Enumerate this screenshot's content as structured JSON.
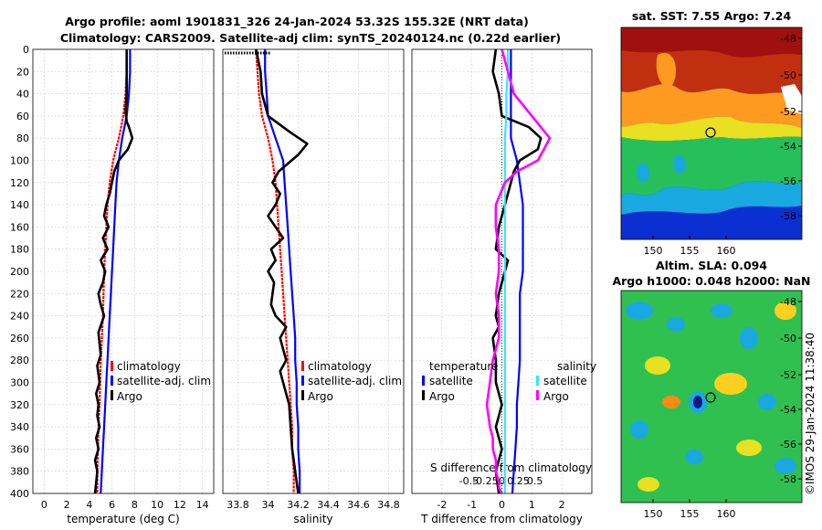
{
  "title_line1": "Argo profile: aoml 1901831_326 24-Jan-2024 53.32S 155.32E (NRT data)",
  "title_line2": "Climatology: CARS2009. Satellite-adj clim: synTS_20240124.nc (0.22d earlier)",
  "copyright": "©IMOS 29-Jan-2024 11:38:40",
  "colors": {
    "climatology": "#ff0000",
    "satellite": "#0000ff",
    "argo": "#000000",
    "sat_salinity": "#33e6ff",
    "argo_salinity": "#ff00ff"
  },
  "chart_data": [
    {
      "type": "line",
      "name": "temperature-profile",
      "xlabel": "temperature (deg C)",
      "xlim": [
        -1,
        15
      ],
      "xticks": [
        "0",
        "2",
        "4",
        "6",
        "8",
        "10",
        "12",
        "14"
      ],
      "ylim": [
        0,
        400
      ],
      "yticks": [
        "0",
        "20",
        "40",
        "60",
        "80",
        "100",
        "120",
        "140",
        "160",
        "180",
        "200",
        "220",
        "240",
        "260",
        "280",
        "300",
        "320",
        "340",
        "360",
        "380",
        "400"
      ],
      "series": [
        {
          "name": "climatology",
          "color": "#ff0000",
          "x": [
            7.3,
            7.3,
            7.2,
            7.0,
            6.6,
            6.1,
            5.8,
            5.6,
            5.5,
            5.4,
            5.3,
            5.25,
            5.2,
            5.1,
            5.0,
            4.95,
            4.9,
            4.8,
            4.75,
            4.7,
            4.7
          ],
          "y": [
            0,
            20,
            40,
            60,
            80,
            100,
            120,
            140,
            160,
            180,
            200,
            220,
            240,
            260,
            280,
            300,
            320,
            340,
            360,
            380,
            400
          ]
        },
        {
          "name": "satellite-adj. clim",
          "color": "#0000ff",
          "x": [
            7.6,
            7.6,
            7.5,
            7.3,
            6.9,
            6.6,
            6.4,
            6.3,
            6.2,
            6.1,
            6.0,
            5.9,
            5.8,
            5.7,
            5.6,
            5.5,
            5.4,
            5.3,
            5.2,
            5.1,
            5.0
          ],
          "y": [
            0,
            20,
            40,
            60,
            80,
            100,
            120,
            140,
            160,
            180,
            200,
            220,
            240,
            260,
            280,
            300,
            320,
            340,
            360,
            380,
            400
          ]
        },
        {
          "name": "Argo",
          "color": "#000000",
          "x": [
            7.3,
            7.3,
            7.3,
            7.2,
            7.3,
            7.5,
            7.8,
            7.4,
            6.6,
            6.2,
            6.0,
            5.8,
            5.5,
            5.3,
            5.7,
            5.2,
            5.6,
            5.0,
            5.4,
            5.2,
            4.8,
            5.0,
            5.3,
            4.8,
            4.9,
            5.0,
            4.7,
            4.9,
            4.6,
            4.8,
            4.7,
            4.9,
            4.6,
            4.8,
            4.5,
            4.7,
            4.6,
            4.5
          ],
          "y": [
            0,
            20,
            40,
            55,
            65,
            70,
            80,
            90,
            100,
            110,
            120,
            130,
            140,
            150,
            160,
            170,
            180,
            190,
            200,
            210,
            220,
            230,
            240,
            255,
            265,
            275,
            285,
            300,
            310,
            320,
            330,
            340,
            350,
            360,
            370,
            380,
            390,
            400
          ]
        }
      ],
      "legend": [
        "climatology",
        "satellite-adj. clim",
        "Argo"
      ]
    },
    {
      "type": "line",
      "name": "salinity-profile",
      "xlabel": "salinity",
      "xlim": [
        33.7,
        34.9
      ],
      "xticks": [
        "33.8",
        "34",
        "34.2",
        "34.4",
        "34.6",
        "34.8"
      ],
      "ylim": [
        0,
        400
      ],
      "series": [
        {
          "name": "climatology",
          "color": "#ff0000",
          "x": [
            33.92,
            33.93,
            33.94,
            33.96,
            34.0,
            34.03,
            34.05,
            34.06,
            34.07,
            34.08,
            34.09,
            34.1,
            34.11,
            34.12,
            34.13,
            34.14,
            34.15,
            34.16,
            34.16,
            34.17,
            34.17
          ],
          "y": [
            0,
            20,
            40,
            60,
            80,
            100,
            120,
            140,
            160,
            180,
            200,
            220,
            240,
            260,
            280,
            300,
            320,
            340,
            360,
            380,
            400
          ]
        },
        {
          "name": "satellite-adj. clim",
          "color": "#0000ff",
          "x": [
            33.98,
            33.98,
            33.99,
            34.0,
            34.05,
            34.1,
            34.11,
            34.12,
            34.13,
            34.14,
            34.15,
            34.16,
            34.17,
            34.18,
            34.18,
            34.19,
            34.19,
            34.2,
            34.2,
            34.21,
            34.21
          ],
          "y": [
            0,
            20,
            40,
            60,
            80,
            100,
            120,
            140,
            160,
            180,
            200,
            220,
            240,
            260,
            280,
            300,
            320,
            340,
            360,
            380,
            400
          ]
        },
        {
          "name": "Argo",
          "color": "#000000",
          "x": [
            33.92,
            33.95,
            33.96,
            34.0,
            34.15,
            34.26,
            34.2,
            34.07,
            34.03,
            34.08,
            34.05,
            34.0,
            34.05,
            34.1,
            34.02,
            34.05,
            34.0,
            34.04,
            34.03,
            34.02,
            34.05,
            34.12,
            34.08,
            34.1,
            34.12,
            34.08,
            34.1,
            34.12,
            34.14,
            34.15,
            34.16,
            34.17,
            34.18,
            34.2
          ],
          "y": [
            0,
            20,
            40,
            60,
            75,
            85,
            95,
            110,
            120,
            130,
            140,
            150,
            160,
            170,
            180,
            190,
            200,
            210,
            220,
            230,
            240,
            250,
            260,
            270,
            280,
            290,
            300,
            310,
            320,
            340,
            360,
            370,
            380,
            400
          ]
        }
      ],
      "legend": [
        "climatology",
        "satellite-adj. clim",
        "Argo"
      ]
    },
    {
      "type": "line",
      "name": "difference-profile",
      "xlabel": "T difference from climatology",
      "xlim": [
        -3,
        3
      ],
      "xticks": [
        "-2",
        "-1",
        "0",
        "1",
        "2"
      ],
      "secondary_xlabel": "S difference from climatology",
      "secondary_xticks": [
        "-0.5",
        "-0.25",
        "0",
        "0.25",
        "0.5"
      ],
      "ylim": [
        0,
        400
      ],
      "series": [
        {
          "name": "temperature satellite",
          "color": "#0000ff",
          "x": [
            0.3,
            0.3,
            0.3,
            0.3,
            0.3,
            0.5,
            0.6,
            0.7,
            0.7,
            0.7,
            0.7,
            0.6,
            0.6,
            0.6,
            0.6,
            0.55,
            0.5,
            0.5,
            0.45,
            0.4,
            0.35
          ],
          "y": [
            0,
            20,
            40,
            60,
            80,
            100,
            120,
            140,
            160,
            180,
            200,
            220,
            240,
            260,
            280,
            300,
            320,
            340,
            360,
            380,
            400
          ]
        },
        {
          "name": "temperature Argo",
          "color": "#000000",
          "x": [
            -0.2,
            -0.3,
            -0.1,
            0.0,
            0.9,
            1.3,
            1.2,
            0.6,
            0.4,
            0.3,
            0.1,
            0.0,
            -0.1,
            -0.2,
            0.2,
            0.1,
            0.0,
            -0.1,
            -0.2,
            -0.1,
            -0.3,
            -0.2,
            -0.2,
            -0.1,
            0.0,
            -0.2,
            -0.1,
            0.0,
            -0.2,
            -0.1
          ],
          "y": [
            0,
            20,
            40,
            60,
            70,
            80,
            90,
            100,
            110,
            120,
            140,
            150,
            160,
            180,
            190,
            200,
            210,
            220,
            240,
            250,
            260,
            280,
            300,
            310,
            320,
            340,
            350,
            360,
            380,
            400
          ]
        },
        {
          "name": "salinity satellite",
          "color": "#33e6ff",
          "x": [
            0.2,
            0.2,
            0.15,
            0.15,
            0.1,
            0.1,
            0.1,
            0.1,
            0.1,
            0.1,
            0.1,
            0.1,
            0.1,
            0.1,
            0.1,
            0.1,
            0.1,
            0.1,
            0.1,
            0.1,
            0.1
          ],
          "y": [
            0,
            20,
            40,
            60,
            80,
            100,
            120,
            140,
            160,
            180,
            200,
            220,
            240,
            260,
            280,
            300,
            320,
            340,
            360,
            380,
            400
          ]
        },
        {
          "name": "salinity Argo",
          "color": "#ff00ff",
          "x": [
            0.0,
            0.2,
            0.4,
            1.0,
            1.6,
            1.2,
            0.5,
            0.1,
            -0.2,
            -0.2,
            -0.1,
            -0.1,
            -0.2,
            -0.1,
            -0.1,
            -0.3,
            -0.4,
            -0.5,
            -0.4,
            -0.3,
            -0.3,
            -0.2,
            -0.2,
            -0.1,
            -0.1,
            0.0
          ],
          "y": [
            0,
            20,
            40,
            60,
            80,
            100,
            110,
            120,
            140,
            160,
            180,
            200,
            220,
            240,
            260,
            280,
            300,
            320,
            340,
            350,
            360,
            370,
            380,
            390,
            395,
            400
          ]
        }
      ],
      "legend_temperature_title": "temperature",
      "legend_salinity_title": "salinity",
      "legend": [
        "satellite",
        "Argo",
        "satellite",
        "Argo"
      ]
    },
    {
      "type": "heatmap",
      "name": "sst-map",
      "title": "sat. SST: 7.55 Argo: 7.24",
      "xticks": [
        "150",
        "155",
        "160"
      ],
      "yticks": [
        "-48",
        "-50",
        "-52",
        "-54",
        "-56",
        "-58"
      ],
      "marker": {
        "lon": 155.32,
        "lat": -53.32
      }
    },
    {
      "type": "heatmap",
      "name": "sla-map",
      "title": "Altim. SLA: 0.094",
      "subtitle": "Argo h1000: 0.048 h2000: NaN",
      "xticks": [
        "150",
        "155",
        "160"
      ],
      "yticks": [
        "-48",
        "-50",
        "-52",
        "-54",
        "-56",
        "-58"
      ],
      "marker": {
        "lon": 155.32,
        "lat": -53.32
      }
    }
  ]
}
